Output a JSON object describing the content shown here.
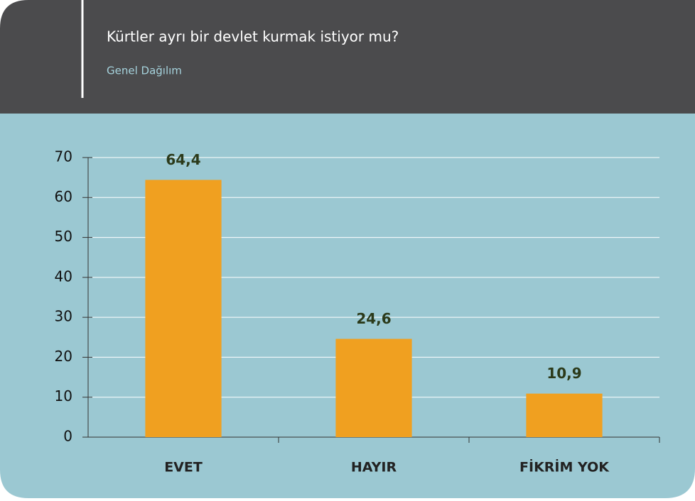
{
  "chart_data": {
    "type": "bar",
    "title": "Kürtler ayrı bir devlet kurmak istiyor mu?",
    "subtitle": "Genel Dağılım",
    "categories": [
      "EVET",
      "HAYIR",
      "FİKRİM YOK"
    ],
    "values": [
      64.4,
      24.6,
      10.9
    ],
    "value_labels": [
      "64,4",
      "24,6",
      "10,9"
    ],
    "color": "#f0a020",
    "ylim": [
      0,
      70
    ],
    "yticks": [
      0,
      10,
      20,
      30,
      40,
      50,
      60,
      70
    ],
    "grid": true
  }
}
